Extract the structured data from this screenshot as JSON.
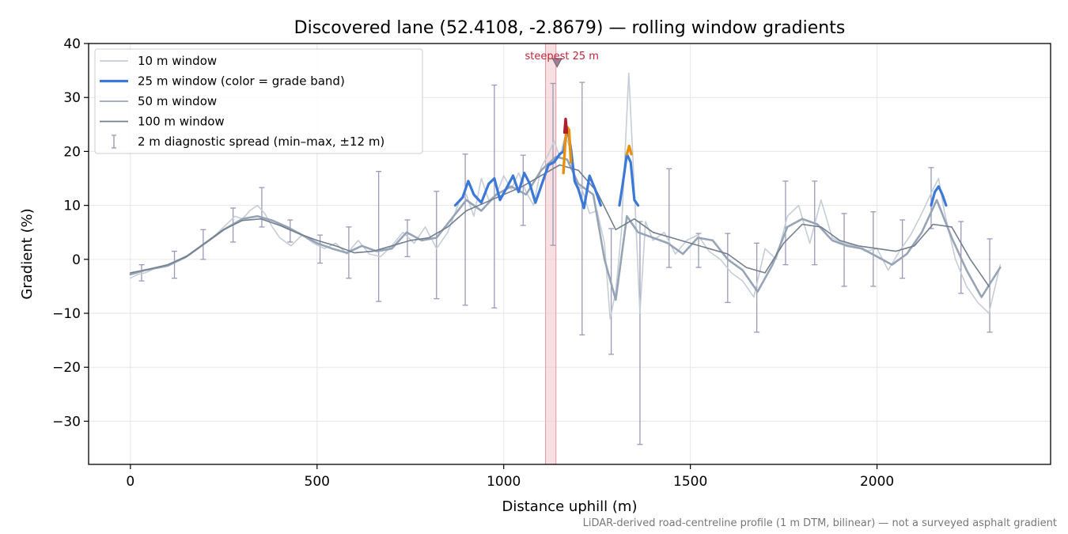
{
  "chart_data": {
    "type": "line",
    "title": "Discovered lane (52.4108, -2.8679) — rolling window gradients",
    "xlabel": "Distance uphill (m)",
    "ylabel": "Gradient (%)",
    "xlim": [
      -112,
      2465
    ],
    "ylim": [
      -38,
      40
    ],
    "xticks": [
      0,
      500,
      1000,
      1500,
      2000
    ],
    "yticks": [
      -30,
      -20,
      -10,
      0,
      10,
      20,
      30,
      40
    ],
    "grid": true,
    "legend_position": "upper-left",
    "colors": {
      "w10": "#c5cdd6",
      "w25": "#3b78d8",
      "w50": "#97a4b5",
      "w100": "#737f8e",
      "errorbars": "#9a99b8",
      "band_orange": "#e8900c",
      "band_red": "#b01f2e",
      "highlight": "#f3c9cd",
      "steepest": "#c0243a"
    },
    "legend": [
      {
        "key": "w10",
        "label": "10 m window"
      },
      {
        "key": "w25",
        "label": "25 m window (color = grade band)"
      },
      {
        "key": "w50",
        "label": "50 m window"
      },
      {
        "key": "w100",
        "label": "100 m window"
      },
      {
        "key": "err",
        "label": "2 m diagnostic spread (min–max, ±12 m)"
      }
    ],
    "highlight_span": [
      1112,
      1140
    ],
    "annotation": {
      "text": "steepest 25 m",
      "x": 1143,
      "y": 36.5
    },
    "footnote": "LiDAR-derived road-centreline profile (1 m DTM, bilinear) — not a surveyed asphalt gradient",
    "series": [
      {
        "name": "50 m window",
        "x": [
          0,
          40,
          100,
          150,
          200,
          250,
          300,
          340,
          380,
          420,
          460,
          500,
          540,
          580,
          620,
          660,
          700,
          740,
          780,
          820,
          860,
          900,
          940,
          980,
          1020,
          1060,
          1100,
          1140,
          1170,
          1200,
          1240,
          1270,
          1300,
          1330,
          1360,
          1400,
          1440,
          1480,
          1520,
          1560,
          1600,
          1640,
          1680,
          1720,
          1760,
          1800,
          1840,
          1880,
          1920,
          1960,
          2000,
          2040,
          2080,
          2120,
          2160,
          2200,
          2240,
          2280,
          2330
        ],
        "y": [
          -2.8,
          -2.0,
          -1.2,
          0.5,
          3.0,
          5.5,
          7.5,
          8.0,
          7.2,
          6.0,
          4.5,
          3.0,
          2.0,
          1.2,
          2.5,
          1.5,
          2.0,
          5.0,
          3.5,
          4.0,
          7.5,
          11.0,
          9.0,
          12.0,
          13.5,
          12.0,
          16.5,
          19.0,
          18.5,
          14.0,
          12.0,
          0.0,
          -7.5,
          8.0,
          5.0,
          4.0,
          3.0,
          1.0,
          4.0,
          3.5,
          0.0,
          -2.0,
          -6.0,
          -1.0,
          6.0,
          7.5,
          6.5,
          3.5,
          2.5,
          2.0,
          0.5,
          -1.0,
          1.0,
          5.0,
          11.0,
          4.0,
          -2.0,
          -7.0,
          -1.5
        ]
      },
      {
        "name": "100 m window",
        "x": [
          0,
          50,
          100,
          150,
          200,
          250,
          300,
          350,
          400,
          450,
          500,
          550,
          600,
          650,
          700,
          750,
          800,
          850,
          900,
          950,
          1000,
          1050,
          1100,
          1150,
          1200,
          1250,
          1300,
          1350,
          1400,
          1450,
          1500,
          1550,
          1600,
          1650,
          1700,
          1750,
          1800,
          1850,
          1900,
          1950,
          2000,
          2050,
          2100,
          2150,
          2200,
          2250,
          2300
        ],
        "y": [
          -2.5,
          -1.8,
          -1.0,
          0.5,
          3.0,
          5.5,
          7.2,
          7.5,
          6.3,
          4.8,
          3.5,
          2.5,
          1.2,
          1.5,
          2.5,
          3.5,
          4.0,
          6.0,
          9.0,
          10.5,
          12.0,
          13.5,
          15.5,
          17.5,
          16.5,
          12.5,
          5.5,
          7.5,
          5.0,
          4.0,
          3.0,
          2.0,
          1.0,
          -1.5,
          -2.5,
          3.0,
          6.5,
          6.0,
          3.5,
          2.5,
          2.0,
          1.5,
          2.5,
          6.5,
          6.0,
          0.0,
          -5.0
        ]
      },
      {
        "name": "25 m window",
        "x": [
          870,
          890,
          905,
          920,
          940,
          960,
          975,
          990,
          1010,
          1025,
          1040,
          1055,
          1070,
          1085,
          1100,
          1120,
          1135,
          1150,
          1160,
          1165,
          1170,
          1180,
          1190,
          1200,
          1215,
          1230,
          1245,
          1260
        ],
        "y": [
          10.0,
          11.5,
          14.5,
          12.0,
          10.5,
          14.0,
          15.0,
          11.0,
          13.5,
          15.5,
          12.5,
          16.0,
          14.0,
          10.5,
          13.5,
          17.5,
          18.0,
          19.5,
          20.0,
          22.0,
          24.5,
          20.5,
          14.5,
          13.0,
          9.5,
          15.5,
          13.0,
          10.0
        ]
      },
      {
        "name": "25 m window",
        "x": [
          1310,
          1320,
          1330,
          1340,
          1350,
          1360
        ],
        "y": [
          10.0,
          14.5,
          19.5,
          18.0,
          11.0,
          10.0
        ]
      },
      {
        "name": "25 m window",
        "x": [
          2145,
          2155,
          2165,
          2175,
          2185
        ],
        "y": [
          10.0,
          12.5,
          13.5,
          12.0,
          10.0
        ]
      },
      {
        "name": "10 m window",
        "x": [
          0,
          20,
          40,
          70,
          100,
          130,
          160,
          190,
          220,
          250,
          280,
          300,
          320,
          340,
          360,
          380,
          400,
          430,
          460,
          490,
          520,
          550,
          580,
          610,
          640,
          670,
          700,
          730,
          760,
          790,
          820,
          850,
          880,
          900,
          920,
          940,
          960,
          980,
          1000,
          1020,
          1040,
          1060,
          1080,
          1100,
          1120,
          1135,
          1150,
          1165,
          1175,
          1190,
          1210,
          1230,
          1250,
          1270,
          1285,
          1300,
          1315,
          1335,
          1350,
          1365,
          1380,
          1400,
          1430,
          1460,
          1490,
          1520,
          1550,
          1580,
          1610,
          1640,
          1670,
          1700,
          1730,
          1760,
          1790,
          1820,
          1850,
          1880,
          1910,
          1940,
          1970,
          2000,
          2030,
          2060,
          2090,
          2120,
          2150,
          2165,
          2180,
          2210,
          2240,
          2270,
          2300,
          2330
        ],
        "y": [
          -3.5,
          -2.8,
          -2.5,
          -1.5,
          -1.0,
          0.0,
          1.0,
          2.5,
          4.0,
          6.0,
          8.0,
          7.5,
          9.0,
          10.0,
          8.5,
          6.0,
          4.0,
          2.5,
          4.5,
          3.0,
          2.0,
          3.0,
          1.0,
          3.5,
          1.0,
          0.5,
          2.5,
          5.0,
          3.0,
          6.0,
          2.0,
          5.0,
          10.5,
          12.0,
          8.0,
          15.0,
          11.0,
          12.0,
          15.5,
          13.0,
          16.0,
          12.5,
          10.0,
          17.0,
          19.5,
          22.0,
          19.0,
          23.0,
          21.0,
          14.0,
          13.0,
          8.5,
          9.0,
          3.0,
          -11.0,
          -6.0,
          5.0,
          34.5,
          13.0,
          -10.0,
          7.0,
          3.5,
          5.0,
          1.0,
          3.5,
          4.5,
          1.5,
          0.0,
          -2.5,
          -4.0,
          -7.0,
          2.0,
          0.0,
          8.0,
          10.0,
          3.0,
          11.0,
          4.0,
          3.0,
          2.5,
          1.5,
          2.0,
          -2.0,
          1.5,
          4.5,
          8.5,
          13.0,
          15.0,
          9.0,
          0.0,
          -5.0,
          -8.0,
          -10.0,
          -1.0
        ]
      }
    ],
    "errorbars": [
      {
        "x": 30,
        "lo": -4.0,
        "hi": -1.0
      },
      {
        "x": 118,
        "lo": -3.5,
        "hi": 1.5
      },
      {
        "x": 195,
        "lo": 0.0,
        "hi": 5.5
      },
      {
        "x": 275,
        "lo": 3.2,
        "hi": 9.5
      },
      {
        "x": 352,
        "lo": 6.0,
        "hi": 13.3
      },
      {
        "x": 428,
        "lo": 3.2,
        "hi": 7.3
      },
      {
        "x": 508,
        "lo": -0.7,
        "hi": 4.5
      },
      {
        "x": 585,
        "lo": -3.5,
        "hi": 6.0
      },
      {
        "x": 665,
        "lo": -7.8,
        "hi": 16.3
      },
      {
        "x": 742,
        "lo": 0.5,
        "hi": 7.3
      },
      {
        "x": 820,
        "lo": -7.3,
        "hi": 12.6
      },
      {
        "x": 897,
        "lo": -8.5,
        "hi": 19.5
      },
      {
        "x": 975,
        "lo": -9.0,
        "hi": 32.3
      },
      {
        "x": 1052,
        "lo": 6.3,
        "hi": 19.3
      },
      {
        "x": 1132,
        "lo": 2.6,
        "hi": 32.6
      },
      {
        "x": 1210,
        "lo": -14.0,
        "hi": 32.8
      },
      {
        "x": 1288,
        "lo": -17.6,
        "hi": 5.7
      },
      {
        "x": 1365,
        "lo": -34.3,
        "hi": 7.0
      },
      {
        "x": 1443,
        "lo": -1.5,
        "hi": 16.8
      },
      {
        "x": 1522,
        "lo": -1.5,
        "hi": 4.8
      },
      {
        "x": 1600,
        "lo": -8.0,
        "hi": 4.8
      },
      {
        "x": 1678,
        "lo": -13.5,
        "hi": 3.0
      },
      {
        "x": 1755,
        "lo": -1.0,
        "hi": 14.5
      },
      {
        "x": 1833,
        "lo": -1.0,
        "hi": 14.5
      },
      {
        "x": 1912,
        "lo": -5.0,
        "hi": 8.5
      },
      {
        "x": 1990,
        "lo": -5.0,
        "hi": 8.8
      },
      {
        "x": 2068,
        "lo": -3.5,
        "hi": 7.3
      },
      {
        "x": 2145,
        "lo": 5.7,
        "hi": 17.0
      },
      {
        "x": 2225,
        "lo": -6.3,
        "hi": 7.0
      },
      {
        "x": 2302,
        "lo": -13.5,
        "hi": 3.8
      }
    ],
    "grade_band_segments": [
      {
        "band": "orange",
        "x": [
          1160,
          1165,
          1170,
          1175,
          1180
        ],
        "y": [
          16.0,
          22.0,
          24.5,
          24.0,
          18.0
        ]
      },
      {
        "band": "red",
        "x": [
          1163,
          1166,
          1169
        ],
        "y": [
          23.5,
          26.0,
          23.5
        ]
      },
      {
        "band": "orange",
        "x": [
          1330,
          1336,
          1342
        ],
        "y": [
          19.5,
          21.0,
          19.5
        ]
      }
    ]
  }
}
